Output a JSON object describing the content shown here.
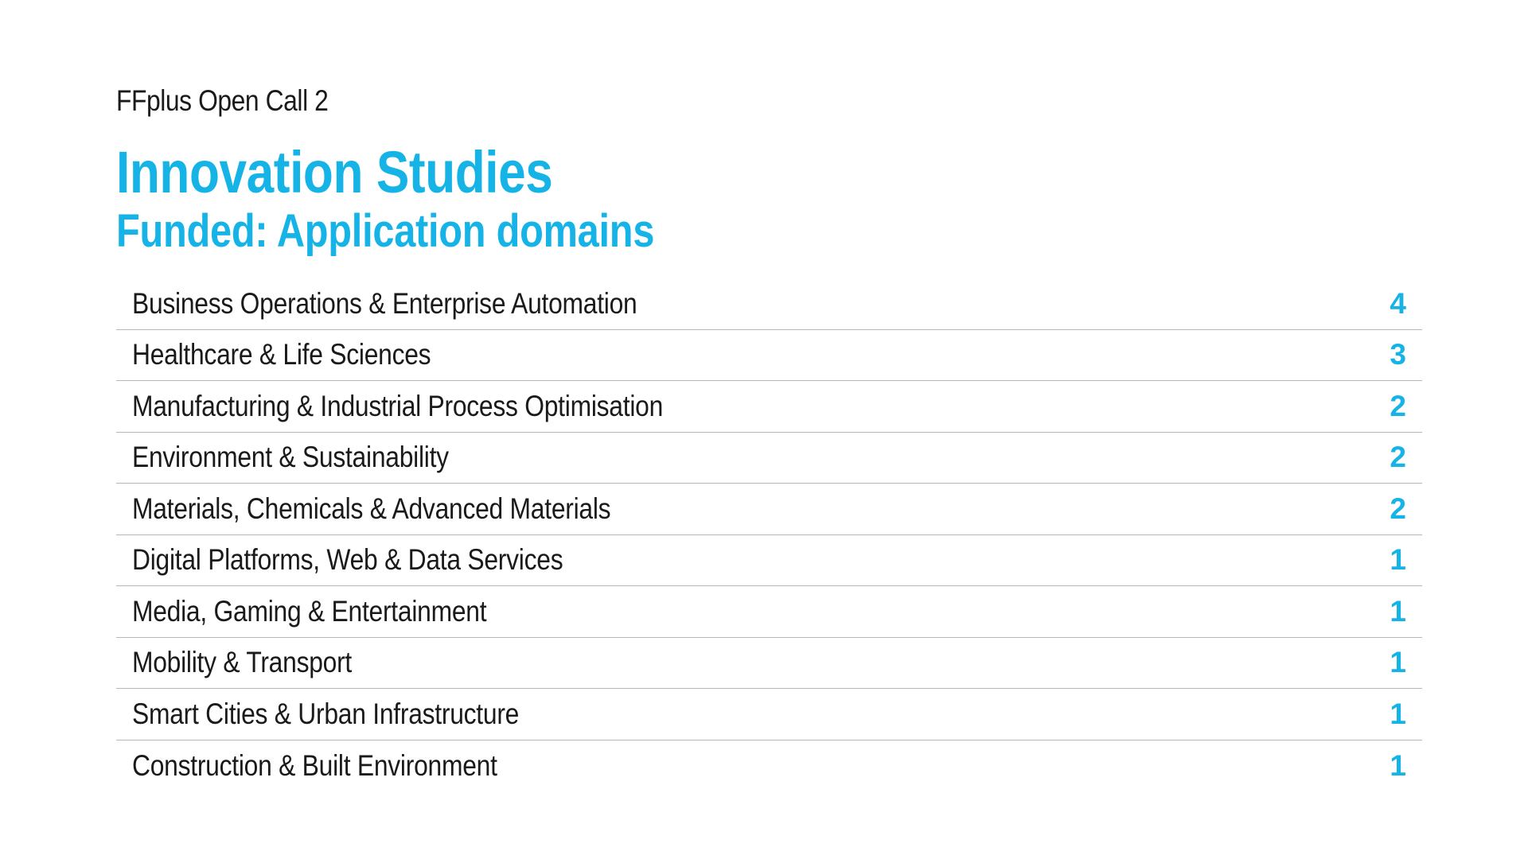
{
  "header": {
    "eyebrow": "FFplus Open Call 2",
    "title": "Innovation Studies",
    "subtitle": "Funded: Application domains"
  },
  "colors": {
    "accent": "#16b3e6",
    "text": "#1a1a1a",
    "divider": "#b7b7b7"
  },
  "domains": [
    {
      "label": "Business Operations & Enterprise Automation",
      "count": "4"
    },
    {
      "label": "Healthcare & Life Sciences",
      "count": "3"
    },
    {
      "label": "Manufacturing & Industrial Process Optimisation",
      "count": "2"
    },
    {
      "label": "Environment & Sustainability",
      "count": "2"
    },
    {
      "label": "Materials, Chemicals & Advanced Materials",
      "count": "2"
    },
    {
      "label": "Digital Platforms, Web & Data Services",
      "count": "1"
    },
    {
      "label": "Media, Gaming & Entertainment",
      "count": "1"
    },
    {
      "label": "Mobility & Transport",
      "count": "1"
    },
    {
      "label": "Smart Cities & Urban Infrastructure",
      "count": "1"
    },
    {
      "label": "Construction & Built Environment",
      "count": "1"
    }
  ]
}
